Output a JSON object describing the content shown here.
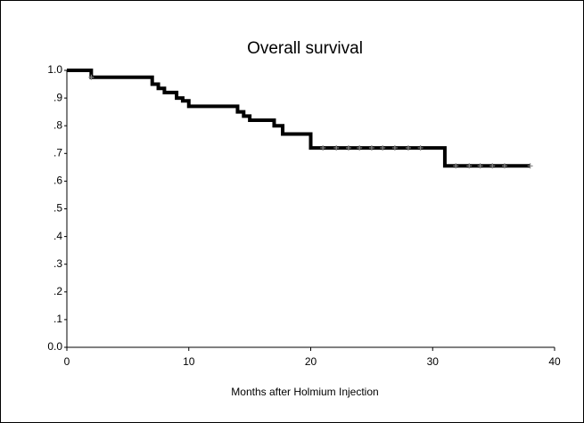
{
  "chart_data": {
    "type": "line",
    "step": "post",
    "title": "Overall survival",
    "x_label": "Months after Holmium Injection",
    "x": [
      0,
      2,
      7,
      7.5,
      8,
      9,
      9.5,
      10,
      14,
      14.5,
      15,
      17,
      17.7,
      20,
      31,
      38
    ],
    "values": [
      1.0,
      0.975,
      0.95,
      0.935,
      0.92,
      0.9,
      0.89,
      0.87,
      0.85,
      0.835,
      0.82,
      0.8,
      0.77,
      0.72,
      0.655,
      0.655
    ],
    "color": "#000000",
    "censored": {
      "x": [
        2,
        21,
        22.1,
        23.1,
        24,
        25,
        25.9,
        26.9,
        28,
        29,
        31.9,
        33,
        33.9,
        34.9,
        35.9,
        38
      ],
      "values": [
        0.975,
        0.72,
        0.72,
        0.72,
        0.72,
        0.72,
        0.72,
        0.72,
        0.72,
        0.72,
        0.655,
        0.655,
        0.655,
        0.655,
        0.655,
        0.655
      ],
      "color": "#888888"
    },
    "xlim": [
      0,
      40
    ],
    "xticks": [
      0,
      10,
      20,
      30,
      40
    ],
    "ylim": [
      0,
      1
    ],
    "yticks": [
      {
        "value": 0,
        "label": "0.0"
      },
      {
        "value": 0.1,
        "label": ".1"
      },
      {
        "value": 0.2,
        "label": ".2"
      },
      {
        "value": 0.3,
        "label": ".3"
      },
      {
        "value": 0.4,
        "label": ".4"
      },
      {
        "value": 0.5,
        "label": ".5"
      },
      {
        "value": 0.6,
        "label": ".6"
      },
      {
        "value": 0.7,
        "label": ".7"
      },
      {
        "value": 0.8,
        "label": ".8"
      },
      {
        "value": 0.9,
        "label": ".9"
      },
      {
        "value": 1.0,
        "label": "1.0"
      }
    ],
    "grid": false
  }
}
